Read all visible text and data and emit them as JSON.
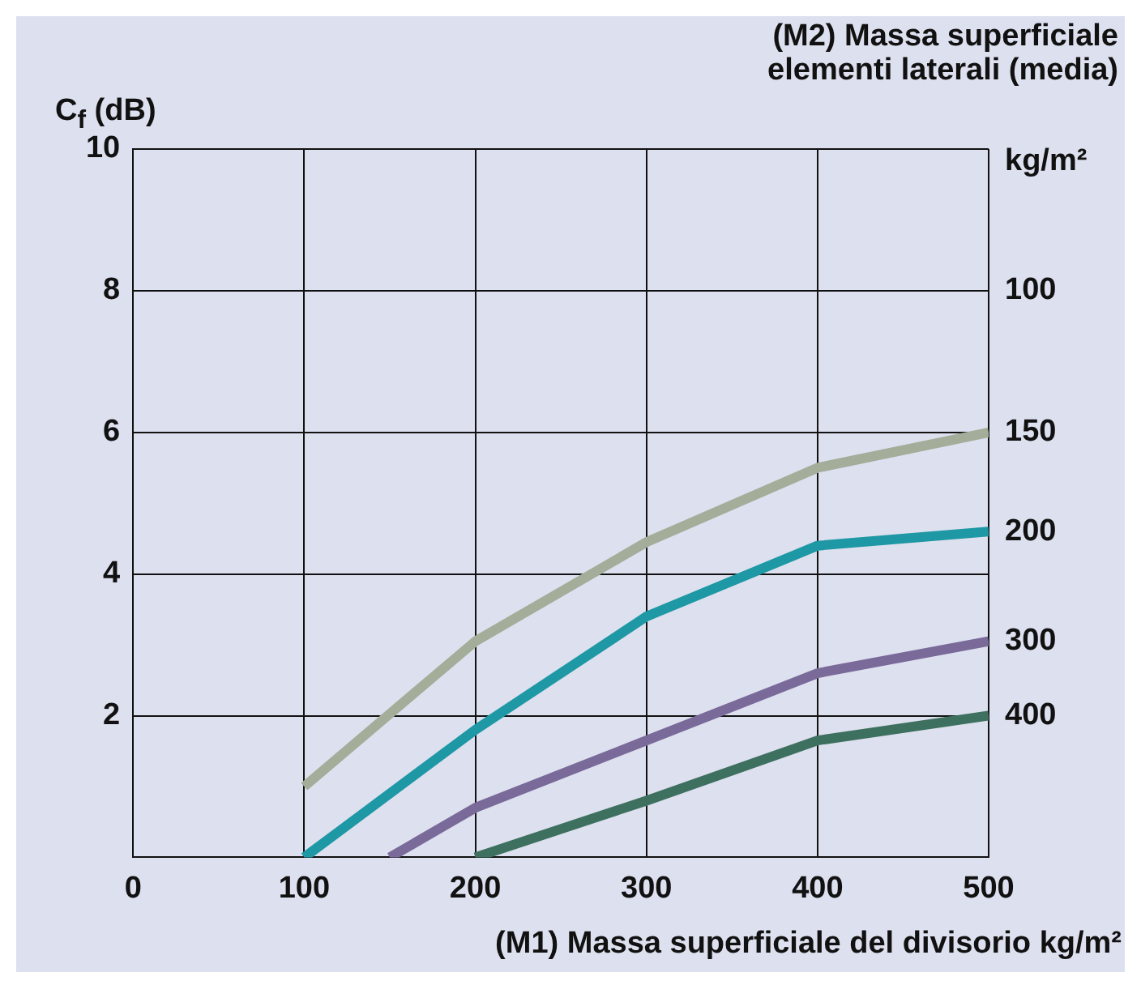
{
  "chart_data": {
    "type": "line",
    "ylabel": "C$_{f}$ (dB)",
    "xlabel": "(M1) Massa superficiale del divisorio kg/m²",
    "annotations": [
      "(M2) Massa superficiale elementi laterali (media)",
      "kg/m²",
      "100"
    ],
    "xlim": [
      0,
      500
    ],
    "xticks": [
      0,
      100,
      200,
      300,
      400,
      500
    ],
    "ylim": [
      0,
      10
    ],
    "yticks": [
      {
        "value": 0,
        "label": null
      },
      2,
      4,
      6,
      8,
      10
    ],
    "grid": true,
    "legend": false,
    "marker": "none",
    "line_style": "solid",
    "series": [
      {
        "name": "150",
        "color": "#a3ad9a",
        "x": [
          100,
          200,
          300,
          400,
          500
        ],
        "values": [
          1.0,
          3.05,
          4.45,
          5.5,
          6.0
        ]
      },
      {
        "name": "200",
        "color": "#1e98a4",
        "x": [
          100,
          200,
          300,
          400,
          500
        ],
        "values": [
          0,
          1.8,
          3.4,
          4.4,
          4.6
        ]
      },
      {
        "name": "300",
        "color": "#7a6a9a",
        "x": [
          150,
          200,
          300,
          400,
          500
        ],
        "values": [
          0,
          0.7,
          1.65,
          2.6,
          3.05
        ]
      },
      {
        "name": "400",
        "color": "#3e7060",
        "x": [
          200,
          300,
          400,
          500
        ],
        "values": [
          0,
          0.8,
          1.65,
          2.0
        ]
      }
    ]
  }
}
